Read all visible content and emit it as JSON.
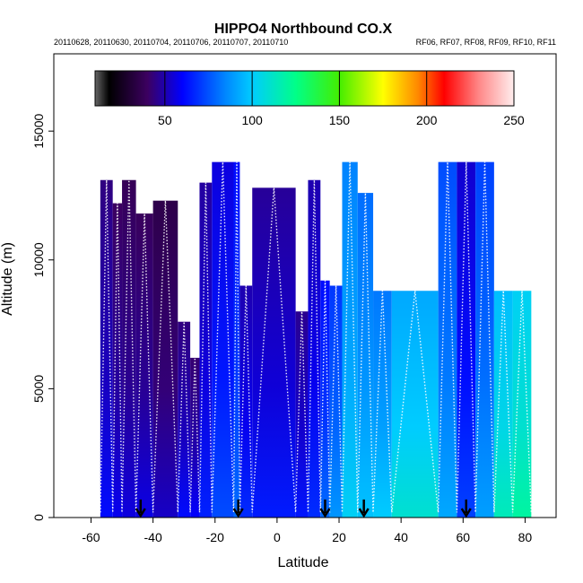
{
  "chart_data": {
    "type": "heatmap",
    "title": "HIPPO4 Northbound CO.X",
    "subtitle_left": "20110628, 20110630, 20110704, 20110706, 20110707, 20110710",
    "subtitle_right": "RF06, RF07, RF08, RF09, RF10, RF11",
    "xlabel": "Latitude",
    "ylabel": "Altitude (m)",
    "xlim": [
      -72,
      90
    ],
    "ylim": [
      0,
      18000
    ],
    "x_ticks": [
      -60,
      -40,
      -20,
      0,
      20,
      40,
      60,
      80
    ],
    "y_ticks": [
      0,
      5000,
      10000,
      15000
    ],
    "colorbar": {
      "min": 10,
      "max": 250,
      "ticks": [
        50,
        100,
        150,
        200,
        250
      ],
      "stops": [
        {
          "v": 10,
          "c": "#666666"
        },
        {
          "v": 18,
          "c": "#000000"
        },
        {
          "v": 40,
          "c": "#3c0060"
        },
        {
          "v": 60,
          "c": "#0000ff"
        },
        {
          "v": 85,
          "c": "#0088ff"
        },
        {
          "v": 100,
          "c": "#00ccff"
        },
        {
          "v": 125,
          "c": "#00ff88"
        },
        {
          "v": 150,
          "c": "#44ee00"
        },
        {
          "v": 175,
          "c": "#ffff00"
        },
        {
          "v": 195,
          "c": "#ff8800"
        },
        {
          "v": 210,
          "c": "#ff0000"
        },
        {
          "v": 230,
          "c": "#ff8888"
        },
        {
          "v": 250,
          "c": "#ffeeee"
        }
      ]
    },
    "flight_columns": [
      {
        "x0": -57,
        "x1": -53,
        "top": 13100,
        "value": 52
      },
      {
        "x0": -53,
        "x1": -50,
        "top": 12200,
        "value": 48
      },
      {
        "x0": -50,
        "x1": -45.5,
        "top": 13100,
        "value": 46
      },
      {
        "x0": -45.5,
        "x1": -40,
        "top": 11800,
        "value": 47
      },
      {
        "x0": -40,
        "x1": -32,
        "top": 12300,
        "value": 43
      },
      {
        "x0": -32,
        "x1": -28,
        "top": 7600,
        "value": 52
      },
      {
        "x0": -28,
        "x1": -25,
        "top": 6200,
        "value": 50
      },
      {
        "x0": -25,
        "x1": -21,
        "top": 13000,
        "value": 56
      },
      {
        "x0": -21,
        "x1": -14,
        "top": 13800,
        "value": 64
      },
      {
        "x0": -14,
        "x1": -12,
        "top": 13800,
        "value": 70
      },
      {
        "x0": -12,
        "x1": -8,
        "top": 9000,
        "value": 58
      },
      {
        "x0": -8,
        "x1": 6,
        "top": 12800,
        "value": 55
      },
      {
        "x0": 6,
        "x1": 10,
        "top": 8000,
        "value": 54
      },
      {
        "x0": 10,
        "x1": 14,
        "top": 13100,
        "value": 58
      },
      {
        "x0": 14,
        "x1": 17,
        "top": 9200,
        "value": 70
      },
      {
        "x0": 17,
        "x1": 21,
        "top": 9000,
        "value": 78
      },
      {
        "x0": 21,
        "x1": 26,
        "top": 13800,
        "value": 92
      },
      {
        "x0": 26,
        "x1": 31,
        "top": 12600,
        "value": 88
      },
      {
        "x0": 31,
        "x1": 37,
        "top": 8800,
        "value": 90
      },
      {
        "x0": 37,
        "x1": 52,
        "top": 8800,
        "value": 100
      },
      {
        "x0": 52,
        "x1": 58,
        "top": 13800,
        "value": 82
      },
      {
        "x0": 58,
        "x1": 64,
        "top": 13800,
        "value": 62
      },
      {
        "x0": 64,
        "x1": 70,
        "top": 13800,
        "value": 80
      },
      {
        "x0": 70,
        "x1": 76,
        "top": 8800,
        "value": 105
      },
      {
        "x0": 76,
        "x1": 82,
        "top": 8800,
        "value": 110
      }
    ],
    "arrows_latitude": [
      -44,
      -12.5,
      15.5,
      28,
      61
    ]
  }
}
